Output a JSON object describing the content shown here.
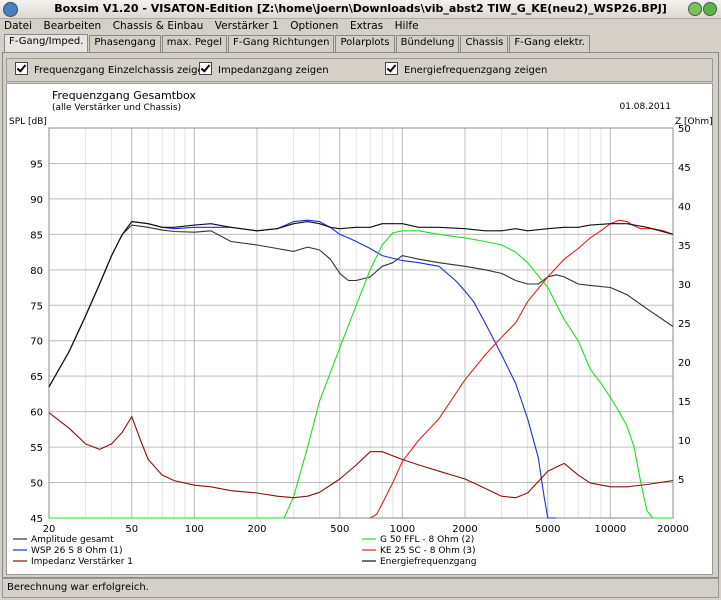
{
  "window": {
    "title": "Boxsim V1.20 - VISATON-Edition [Z:\\home\\joern\\Downloads\\vib_abst2 TIW_G_KE(neu2)_WSP26.BPJ]"
  },
  "menu": [
    "Datei",
    "Bearbeiten",
    "Chassis & Einbau",
    "Verstärker 1",
    "Optionen",
    "Extras",
    "Hilfe"
  ],
  "tabs": [
    "F-Gang/Imped.",
    "Phasengang",
    "max. Pegel",
    "F-Gang Richtungen",
    "Polarplots",
    "Bündelung",
    "Chassis",
    "F-Gang elektr."
  ],
  "options": {
    "show_single": "Frequenzgang Einzelchassis zeigen",
    "show_impedance": "Impedanzgang zeigen",
    "show_energy": "Energiefrequenzgang zeigen"
  },
  "status": "Berechnung war erfolgreich.",
  "chart_data": {
    "type": "line",
    "title": "Frequenzgang Gesamtbox",
    "subtitle": "(alle Verstärker und Chassis)",
    "date": "01.08.2011",
    "ylabel": "SPL [dB]",
    "y2label": "Z [Ohm]",
    "x_scale": "log",
    "xlim": [
      20,
      20000
    ],
    "ylim": [
      45,
      100
    ],
    "y2lim": [
      0,
      50
    ],
    "grid": true,
    "x_ticks": [
      20,
      50,
      100,
      200,
      500,
      1000,
      2000,
      5000,
      10000,
      20000
    ],
    "y_ticks": [
      45,
      50,
      55,
      60,
      65,
      70,
      75,
      80,
      85,
      90,
      95
    ],
    "y2_ticks": [
      5,
      10,
      15,
      20,
      25,
      30,
      35,
      40,
      45,
      50
    ],
    "legend_position": "bottom",
    "series": [
      {
        "name": "Amplitude gesamt",
        "color": "#333333",
        "axis": "left",
        "x": [
          20,
          25,
          30,
          35,
          40,
          45,
          50,
          60,
          70,
          80,
          100,
          120,
          150,
          200,
          250,
          300,
          350,
          400,
          450,
          500,
          550,
          600,
          700,
          800,
          900,
          1000,
          1200,
          1500,
          2000,
          2500,
          3000,
          3500,
          4000,
          4500,
          5000,
          5500,
          6000,
          7000,
          8000,
          10000,
          12000,
          15000,
          20000
        ],
        "y": [
          63.5,
          68.5,
          73.5,
          78,
          82,
          85,
          86.3,
          86,
          85.6,
          85.4,
          85.3,
          85.5,
          84,
          83.5,
          83,
          82.6,
          83.2,
          82.8,
          81.5,
          79.5,
          78.5,
          78.5,
          79,
          80.5,
          81,
          82,
          81.5,
          81,
          80.5,
          80,
          79.5,
          78.5,
          78,
          78,
          79,
          79.3,
          79,
          78,
          77.8,
          77.5,
          76.5,
          74.5,
          72
        ]
      },
      {
        "name": "WSP 26 S 8 Ohm (1)",
        "color": "#1c2fd6",
        "axis": "left",
        "x": [
          20,
          25,
          30,
          35,
          40,
          45,
          50,
          60,
          70,
          80,
          100,
          120,
          150,
          200,
          250,
          300,
          350,
          400,
          450,
          500,
          550,
          600,
          700,
          800,
          1000,
          1200,
          1500,
          1800,
          2000,
          2200,
          2500,
          3000,
          3500,
          4000,
          4500,
          4800,
          5000,
          5500
        ],
        "y": [
          63.5,
          68.5,
          73.5,
          78,
          82,
          85,
          86.8,
          86.5,
          86,
          85.8,
          86,
          86,
          86,
          85.5,
          85.8,
          86.8,
          87,
          86.8,
          86,
          85,
          84.5,
          84,
          83,
          82,
          81.3,
          81,
          80.5,
          78.5,
          77,
          75.5,
          72.5,
          68,
          64,
          59,
          53.5,
          48,
          45,
          45
        ]
      },
      {
        "name": "G 50 FFL - 8 Ohm (2)",
        "color": "#22dd22",
        "axis": "left",
        "x": [
          20,
          200,
          240,
          270,
          300,
          350,
          400,
          500,
          600,
          700,
          800,
          900,
          1000,
          1200,
          1500,
          2000,
          2500,
          3000,
          3500,
          4000,
          5000,
          6000,
          7000,
          8000,
          9000,
          10000,
          11000,
          12000,
          13000,
          14000,
          15000,
          16000,
          20000
        ],
        "y": [
          45,
          45,
          45,
          45,
          48,
          55,
          61.5,
          69,
          75,
          80,
          83.5,
          85.2,
          85.5,
          85.5,
          85,
          84.5,
          84,
          83.5,
          82.5,
          81,
          77.5,
          73,
          70,
          66,
          64,
          62,
          60,
          58,
          55,
          50,
          46,
          45,
          45
        ]
      },
      {
        "name": "KE 25 SC - 8 Ohm (3)",
        "color": "#e02020",
        "axis": "left",
        "x": [
          700,
          750,
          800,
          900,
          1000,
          1200,
          1500,
          1800,
          2000,
          2500,
          3000,
          3500,
          4000,
          5000,
          6000,
          7000,
          8000,
          9000,
          10000,
          11000,
          12000,
          13000,
          14000,
          15000,
          16000,
          18000,
          20000
        ],
        "y": [
          45,
          45.5,
          47,
          50,
          53,
          56,
          59,
          62.5,
          64.5,
          68,
          70.5,
          72.5,
          75.5,
          79,
          81.5,
          83,
          84.5,
          85.5,
          86.5,
          87,
          86.8,
          86.2,
          85.8,
          85.8,
          85.8,
          85.5,
          85
        ]
      },
      {
        "name": "Impedanz Verstärker 1",
        "color": "#8b1010",
        "axis": "right",
        "x": [
          20,
          25,
          30,
          35,
          40,
          45,
          50,
          55,
          60,
          70,
          80,
          100,
          120,
          150,
          200,
          250,
          300,
          350,
          400,
          500,
          600,
          700,
          800,
          1000,
          1200,
          1500,
          2000,
          2500,
          3000,
          3500,
          4000,
          5000,
          6000,
          7000,
          8000,
          10000,
          12000,
          15000,
          20000
        ],
        "y": [
          13.5,
          11.5,
          9.5,
          8.8,
          9.5,
          11,
          13,
          10,
          7.5,
          5.5,
          4.8,
          4.2,
          4.0,
          3.5,
          3.2,
          2.8,
          2.6,
          2.8,
          3.3,
          5.0,
          6.8,
          8.5,
          8.5,
          7.5,
          6.8,
          6.0,
          5.0,
          3.8,
          2.8,
          2.6,
          3.2,
          6.0,
          7.0,
          5.5,
          4.5,
          4.0,
          4.0,
          4.3,
          4.8
        ]
      },
      {
        "name": "Energiefrequenzgang",
        "color": "#111111",
        "axis": "left",
        "x": [
          20,
          25,
          30,
          35,
          40,
          45,
          50,
          60,
          70,
          80,
          100,
          120,
          150,
          200,
          250,
          300,
          350,
          400,
          450,
          500,
          600,
          700,
          800,
          1000,
          1200,
          1500,
          2000,
          2500,
          3000,
          3500,
          4000,
          5000,
          6000,
          7000,
          8000,
          10000,
          12000,
          15000,
          20000
        ],
        "y": [
          63.5,
          68.5,
          73.5,
          78,
          82,
          85,
          86.8,
          86.5,
          86,
          86,
          86.3,
          86.5,
          86,
          85.5,
          85.8,
          86.5,
          86.8,
          86.5,
          86,
          85.8,
          86,
          86,
          86.5,
          86.5,
          86,
          86,
          85.8,
          85.5,
          85.5,
          85.8,
          85.5,
          85.8,
          86,
          86,
          86.3,
          86.5,
          86.5,
          86,
          85
        ]
      }
    ]
  }
}
